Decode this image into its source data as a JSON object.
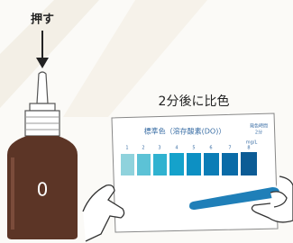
{
  "instruction": "押す",
  "bottle_label": "0",
  "step_title": "2分後に比色",
  "card": {
    "title": "標準色（溶存酸素(DO)）",
    "time_label": "発色時間",
    "time_value": "2分",
    "unit": "mg/L",
    "scale": [
      "1",
      "2",
      "3",
      "4",
      "5",
      "6",
      "7",
      "8"
    ]
  }
}
